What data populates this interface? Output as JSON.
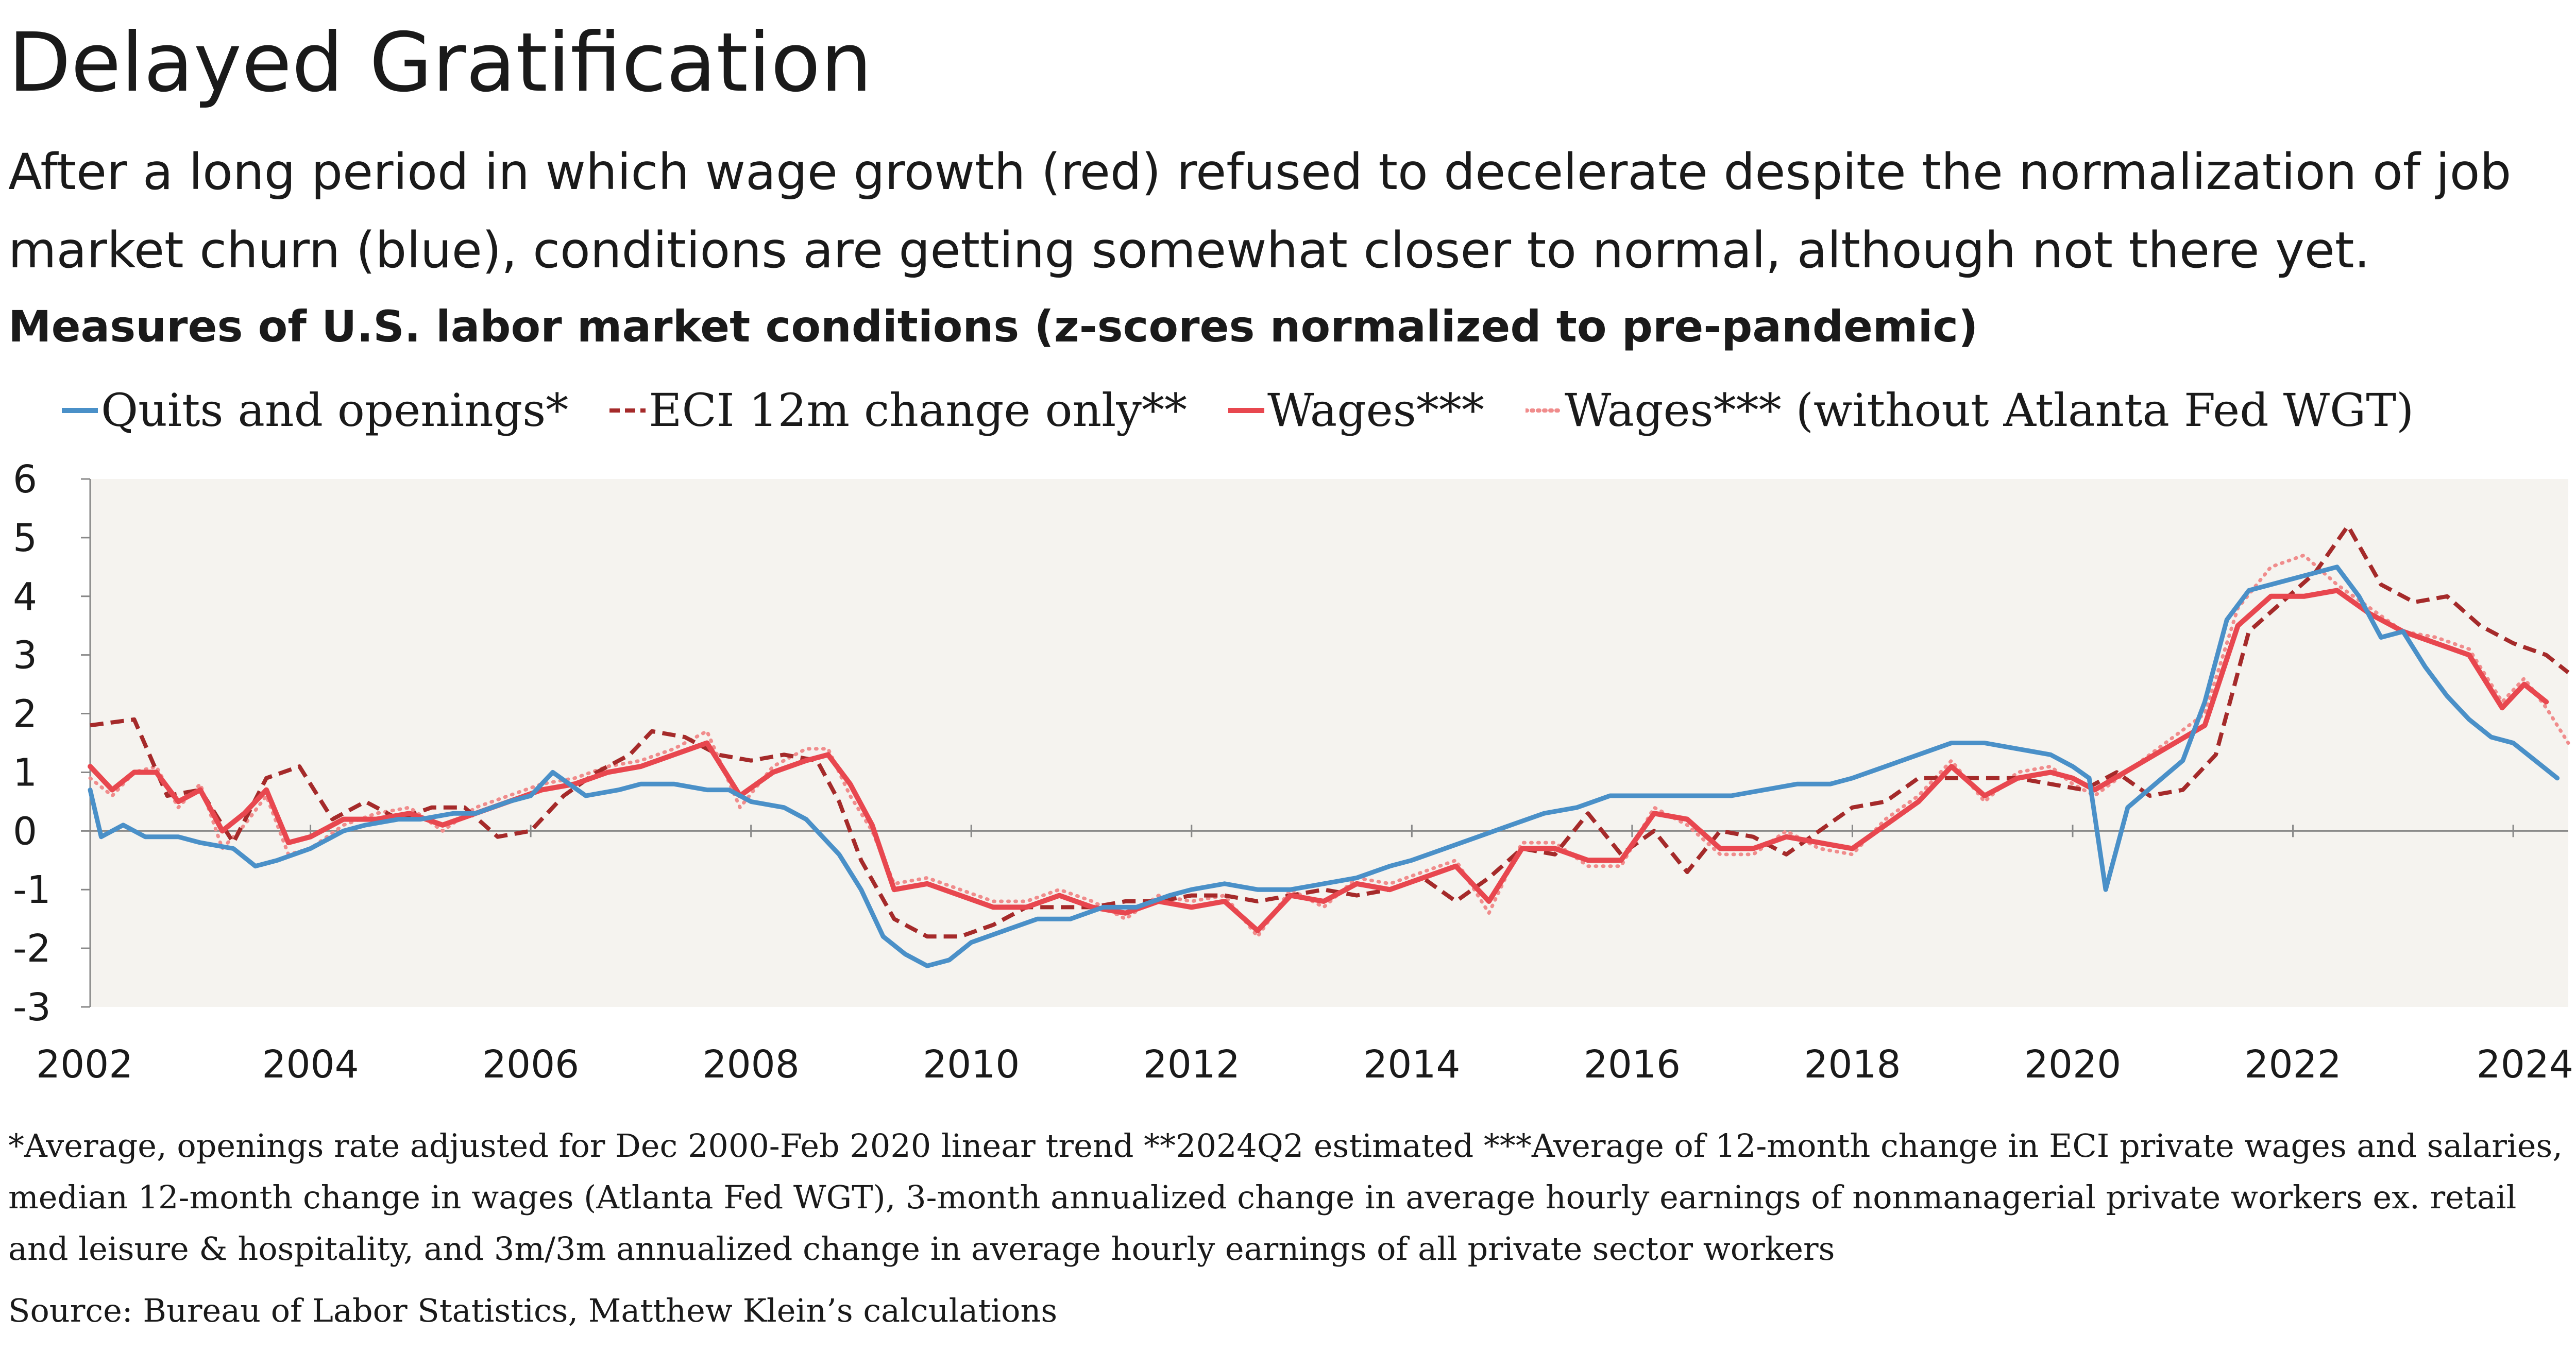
{
  "header": {
    "title": "Delayed Gratification",
    "subtitle": "After a long period in which wage growth (red) refused to decelerate despite the normalization of job market churn (blue), conditions are getting somewhat closer to normal, although not there yet.",
    "chart_title": "Measures of U.S. labor market conditions (z-scores normalized to pre-pandemic)"
  },
  "footer": {
    "footnote": "*Average, openings rate adjusted for Dec 2000-Feb 2020 linear trend  **2024Q2 estimated  ***Average of 12-month change in ECI private wages and salaries, median 12-month change in wages (Atlanta Fed WGT), 3-month annualized change in average hourly earnings of nonmanagerial private workers ex. retail and leisure & hospitality, and 3m/3m annualized change in average hourly earnings of all private sector workers",
    "source": "Source: Bureau of Labor Statistics, Matthew Klein’s calculations"
  },
  "colors": {
    "quits": "#4a90c8",
    "eci": "#a52a2a",
    "wages": "#e8474f",
    "wages_ex": "#f08c8c",
    "plot_bg": "#f5f3ef"
  },
  "chart_data": {
    "type": "line",
    "x_unit": "year",
    "xlim": [
      2002,
      2024.5
    ],
    "ylim": [
      -3,
      6
    ],
    "x_ticks": [
      2002,
      2004,
      2006,
      2008,
      2010,
      2012,
      2014,
      2016,
      2018,
      2020,
      2022,
      2024
    ],
    "y_ticks": [
      6,
      5,
      4,
      3,
      2,
      1,
      0,
      -1,
      -2,
      -3
    ],
    "grid": false,
    "legend_position": "top",
    "series": [
      {
        "name": "Quits and openings*",
        "key": "quits",
        "style": "solid",
        "x": [
          2002.0,
          2002.1,
          2002.3,
          2002.5,
          2002.8,
          2003.0,
          2003.3,
          2003.5,
          2003.7,
          2004.0,
          2004.3,
          2004.5,
          2004.8,
          2005.0,
          2005.3,
          2005.5,
          2005.8,
          2006.0,
          2006.2,
          2006.5,
          2006.8,
          2007.0,
          2007.3,
          2007.6,
          2007.8,
          2008.0,
          2008.3,
          2008.5,
          2008.8,
          2009.0,
          2009.2,
          2009.4,
          2009.6,
          2009.8,
          2010.0,
          2010.3,
          2010.6,
          2010.9,
          2011.2,
          2011.5,
          2011.8,
          2012.0,
          2012.3,
          2012.6,
          2012.9,
          2013.2,
          2013.5,
          2013.8,
          2014.0,
          2014.3,
          2014.6,
          2014.9,
          2015.2,
          2015.5,
          2015.8,
          2016.0,
          2016.3,
          2016.6,
          2016.9,
          2017.2,
          2017.5,
          2017.8,
          2018.0,
          2018.3,
          2018.6,
          2018.9,
          2019.2,
          2019.5,
          2019.8,
          2020.0,
          2020.15,
          2020.3,
          2020.5,
          2020.75,
          2021.0,
          2021.2,
          2021.4,
          2021.6,
          2021.8,
          2022.0,
          2022.2,
          2022.4,
          2022.6,
          2022.8,
          2023.0,
          2023.2,
          2023.4,
          2023.6,
          2023.8,
          2024.0,
          2024.2,
          2024.4
        ],
        "y": [
          0.7,
          -0.1,
          0.1,
          -0.1,
          -0.1,
          -0.2,
          -0.3,
          -0.6,
          -0.5,
          -0.3,
          0.0,
          0.1,
          0.2,
          0.2,
          0.3,
          0.3,
          0.5,
          0.6,
          1.0,
          0.6,
          0.7,
          0.8,
          0.8,
          0.7,
          0.7,
          0.5,
          0.4,
          0.2,
          -0.4,
          -1.0,
          -1.8,
          -2.1,
          -2.3,
          -2.2,
          -1.9,
          -1.7,
          -1.5,
          -1.5,
          -1.3,
          -1.3,
          -1.1,
          -1.0,
          -0.9,
          -1.0,
          -1.0,
          -0.9,
          -0.8,
          -0.6,
          -0.5,
          -0.3,
          -0.1,
          0.1,
          0.3,
          0.4,
          0.6,
          0.6,
          0.6,
          0.6,
          0.6,
          0.7,
          0.8,
          0.8,
          0.9,
          1.1,
          1.3,
          1.5,
          1.5,
          1.4,
          1.3,
          1.1,
          0.9,
          -1.0,
          0.4,
          0.8,
          1.2,
          2.2,
          3.6,
          4.1,
          4.2,
          4.3,
          4.4,
          4.5,
          4.0,
          3.3,
          3.4,
          2.8,
          2.3,
          1.9,
          1.6,
          1.5,
          1.2,
          0.9
        ]
      },
      {
        "name": "ECI 12m change only**",
        "key": "eci",
        "style": "dashed",
        "x": [
          2002.0,
          2002.4,
          2002.7,
          2003.0,
          2003.3,
          2003.6,
          2003.9,
          2004.2,
          2004.5,
          2004.8,
          2005.1,
          2005.4,
          2005.7,
          2006.0,
          2006.3,
          2006.6,
          2006.9,
          2007.1,
          2007.4,
          2007.7,
          2008.0,
          2008.3,
          2008.6,
          2008.8,
          2009.0,
          2009.3,
          2009.6,
          2009.9,
          2010.2,
          2010.5,
          2010.8,
          2011.1,
          2011.4,
          2011.7,
          2012.0,
          2012.3,
          2012.6,
          2012.9,
          2013.2,
          2013.5,
          2013.8,
          2014.1,
          2014.4,
          2014.7,
          2015.0,
          2015.3,
          2015.6,
          2015.9,
          2016.2,
          2016.5,
          2016.8,
          2017.1,
          2017.4,
          2017.7,
          2018.0,
          2018.3,
          2018.6,
          2018.9,
          2019.2,
          2019.5,
          2019.8,
          2020.1,
          2020.4,
          2020.7,
          2021.0,
          2021.3,
          2021.6,
          2021.9,
          2022.2,
          2022.5,
          2022.8,
          2023.1,
          2023.4,
          2023.7,
          2024.0,
          2024.3,
          2024.5
        ],
        "y": [
          1.8,
          1.9,
          0.6,
          0.7,
          -0.2,
          0.9,
          1.1,
          0.2,
          0.5,
          0.2,
          0.4,
          0.4,
          -0.1,
          0.0,
          0.6,
          1.0,
          1.3,
          1.7,
          1.6,
          1.3,
          1.2,
          1.3,
          1.2,
          0.5,
          -0.5,
          -1.5,
          -1.8,
          -1.8,
          -1.6,
          -1.3,
          -1.3,
          -1.3,
          -1.2,
          -1.2,
          -1.1,
          -1.1,
          -1.2,
          -1.1,
          -1.0,
          -1.1,
          -1.0,
          -0.8,
          -1.2,
          -0.8,
          -0.3,
          -0.4,
          0.3,
          -0.4,
          0.0,
          -0.7,
          0.0,
          -0.1,
          -0.4,
          0.0,
          0.4,
          0.5,
          0.9,
          0.9,
          0.9,
          0.9,
          0.8,
          0.7,
          1.0,
          0.6,
          0.7,
          1.3,
          3.4,
          3.9,
          4.4,
          5.2,
          4.2,
          3.9,
          4.0,
          3.5,
          3.2,
          3.0,
          2.7
        ]
      },
      {
        "name": "Wages***",
        "key": "wages",
        "style": "solid",
        "x": [
          2002.0,
          2002.2,
          2002.4,
          2002.6,
          2002.8,
          2003.0,
          2003.2,
          2003.4,
          2003.6,
          2003.8,
          2004.0,
          2004.3,
          2004.6,
          2004.9,
          2005.2,
          2005.5,
          2005.8,
          2006.1,
          2006.4,
          2006.7,
          2007.0,
          2007.3,
          2007.6,
          2007.9,
          2008.2,
          2008.5,
          2008.7,
          2008.9,
          2009.1,
          2009.3,
          2009.6,
          2009.9,
          2010.2,
          2010.5,
          2010.8,
          2011.1,
          2011.4,
          2011.7,
          2012.0,
          2012.3,
          2012.6,
          2012.9,
          2013.2,
          2013.5,
          2013.8,
          2014.1,
          2014.4,
          2014.7,
          2015.0,
          2015.3,
          2015.6,
          2015.9,
          2016.2,
          2016.5,
          2016.8,
          2017.1,
          2017.4,
          2017.7,
          2018.0,
          2018.3,
          2018.6,
          2018.9,
          2019.2,
          2019.5,
          2019.8,
          2020.0,
          2020.2,
          2021.2,
          2021.5,
          2021.8,
          2022.1,
          2022.4,
          2022.7,
          2023.0,
          2023.3,
          2023.6,
          2023.9,
          2024.1,
          2024.3
        ],
        "y": [
          1.1,
          0.7,
          1.0,
          1.0,
          0.5,
          0.7,
          0.0,
          0.3,
          0.7,
          -0.2,
          -0.1,
          0.2,
          0.2,
          0.3,
          0.1,
          0.3,
          0.5,
          0.7,
          0.8,
          1.0,
          1.1,
          1.3,
          1.5,
          0.6,
          1.0,
          1.2,
          1.3,
          0.8,
          0.1,
          -1.0,
          -0.9,
          -1.1,
          -1.3,
          -1.3,
          -1.1,
          -1.3,
          -1.4,
          -1.2,
          -1.3,
          -1.2,
          -1.7,
          -1.1,
          -1.2,
          -0.9,
          -1.0,
          -0.8,
          -0.6,
          -1.2,
          -0.3,
          -0.3,
          -0.5,
          -0.5,
          0.3,
          0.2,
          -0.3,
          -0.3,
          -0.1,
          -0.2,
          -0.3,
          0.1,
          0.5,
          1.1,
          0.6,
          0.9,
          1.0,
          0.9,
          0.7,
          1.8,
          3.5,
          4.0,
          4.0,
          4.1,
          3.7,
          3.4,
          3.2,
          3.0,
          2.1,
          2.5,
          2.2
        ]
      },
      {
        "name": "Wages*** (without Atlanta Fed WGT)",
        "key": "wages_ex",
        "style": "dotted",
        "x": [
          2002.0,
          2002.2,
          2002.4,
          2002.6,
          2002.8,
          2003.0,
          2003.2,
          2003.4,
          2003.6,
          2003.8,
          2004.0,
          2004.3,
          2004.6,
          2004.9,
          2005.2,
          2005.5,
          2005.8,
          2006.1,
          2006.4,
          2006.7,
          2007.0,
          2007.3,
          2007.6,
          2007.9,
          2008.2,
          2008.5,
          2008.7,
          2008.9,
          2009.1,
          2009.3,
          2009.6,
          2009.9,
          2010.2,
          2010.5,
          2010.8,
          2011.1,
          2011.4,
          2011.7,
          2012.0,
          2012.3,
          2012.6,
          2012.9,
          2013.2,
          2013.5,
          2013.8,
          2014.1,
          2014.4,
          2014.7,
          2015.0,
          2015.3,
          2015.6,
          2015.9,
          2016.2,
          2016.5,
          2016.8,
          2017.1,
          2017.4,
          2017.7,
          2018.0,
          2018.3,
          2018.6,
          2018.9,
          2019.2,
          2019.5,
          2019.8,
          2020.0,
          2020.2,
          2021.2,
          2021.5,
          2021.8,
          2022.1,
          2022.4,
          2022.7,
          2023.0,
          2023.3,
          2023.6,
          2023.9,
          2024.1,
          2024.3,
          2024.5
        ],
        "y": [
          0.9,
          0.6,
          1.0,
          1.1,
          0.4,
          0.8,
          -0.3,
          0.1,
          0.6,
          -0.4,
          -0.3,
          0.1,
          0.3,
          0.4,
          0.0,
          0.4,
          0.6,
          0.8,
          0.9,
          1.1,
          1.2,
          1.4,
          1.7,
          0.4,
          1.1,
          1.4,
          1.4,
          0.6,
          0.0,
          -0.9,
          -0.8,
          -1.0,
          -1.2,
          -1.2,
          -1.0,
          -1.2,
          -1.5,
          -1.1,
          -1.2,
          -1.1,
          -1.8,
          -1.0,
          -1.3,
          -0.8,
          -0.9,
          -0.7,
          -0.5,
          -1.4,
          -0.2,
          -0.2,
          -0.6,
          -0.6,
          0.4,
          0.1,
          -0.4,
          -0.4,
          0.0,
          -0.3,
          -0.4,
          0.2,
          0.6,
          1.2,
          0.5,
          1.0,
          1.1,
          0.8,
          0.6,
          2.0,
          3.8,
          4.5,
          4.7,
          4.2,
          3.8,
          3.4,
          3.3,
          3.1,
          2.2,
          2.6,
          2.1,
          1.5
        ]
      }
    ]
  }
}
